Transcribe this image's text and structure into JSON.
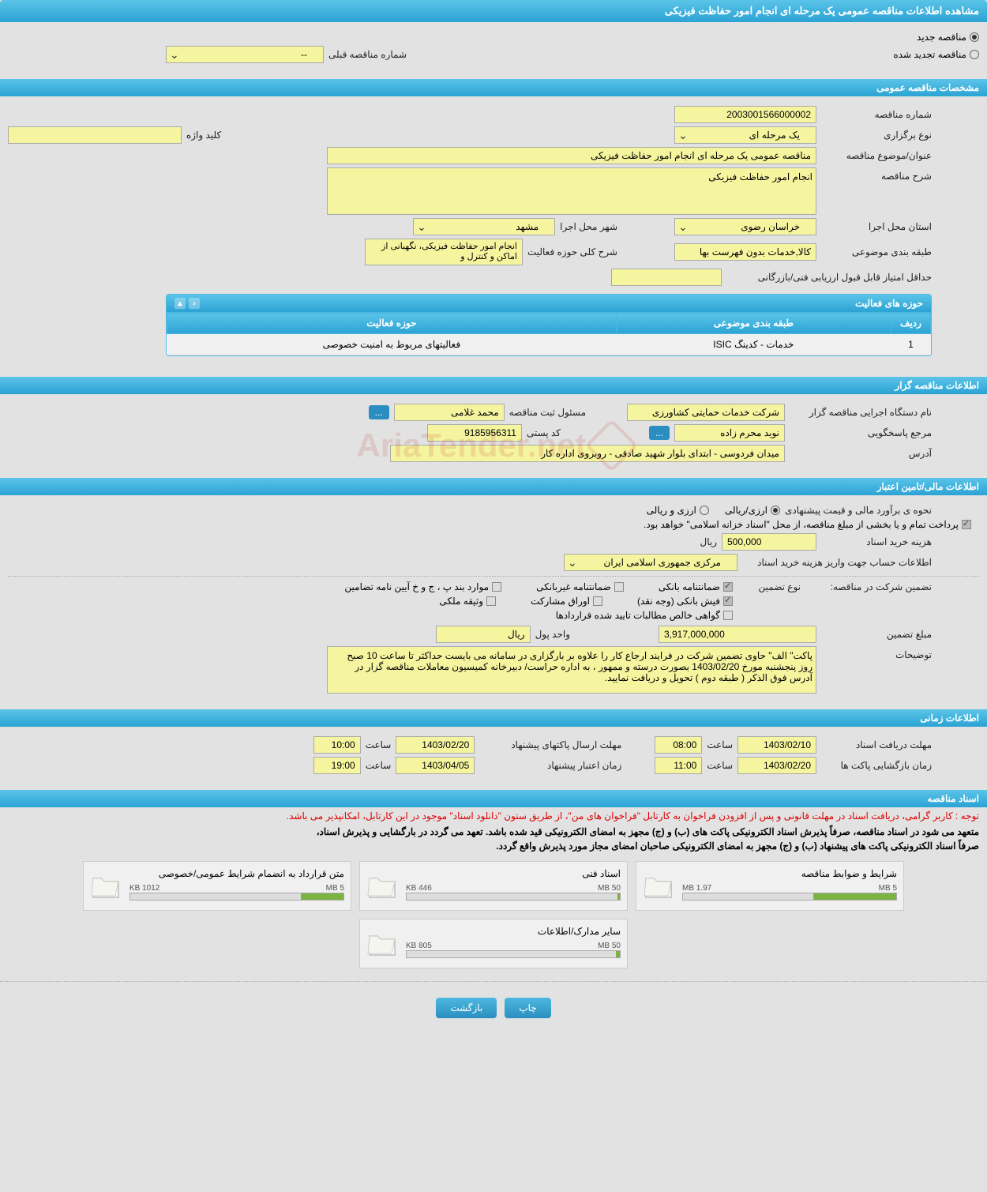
{
  "page_title": "مشاهده اطلاعات مناقصه عمومی یک مرحله ای انجام امور حفاظت فیزیکی",
  "tender_type": {
    "new": "مناقصه جدید",
    "renewed": "مناقصه تجدید شده",
    "prev_number_label": "شماره مناقصه قبلی",
    "prev_number_value": "--"
  },
  "general_spec": {
    "title": "مشخصات مناقصه عمومی",
    "tender_number_label": "شماره مناقصه",
    "tender_number": "2003001566000002",
    "holding_type_label": "نوع برگزاری",
    "holding_type": "یک مرحله ای",
    "keyword_label": "کلید واژه",
    "keyword": "",
    "subject_label": "عنوان/موضوع مناقصه",
    "subject": "مناقصه عمومی یک مرحله ای انجام امور حفاظت فیزیکی",
    "desc_label": "شرح مناقصه",
    "desc": "انجام امور حفاظت فیزیکی",
    "province_label": "استان محل اجرا",
    "province": "خراسان رضوی",
    "city_label": "شهر محل اجرا",
    "city": "مشهد",
    "category_label": "طبقه بندی موضوعی",
    "category": "کالا,خدمات بدون فهرست بها",
    "activity_desc_label": "شرح کلی حوزه فعالیت",
    "activity_desc": "انجام امور حفاظت فیزیکی، نگهبانی از اماکن و کنترل و",
    "min_score_label": "حداقل امتیاز قابل قبول ارزیابی فنی/بازرگانی",
    "min_score": ""
  },
  "activity": {
    "panel_title": "حوزه های فعالیت",
    "col_row": "ردیف",
    "col_category": "طبقه بندی موضوعی",
    "col_field": "حوزه فعالیت",
    "rows": [
      {
        "num": "1",
        "category": "خدمات - کدینگ ISIC",
        "field": "فعالیتهای مربوط به امنیت خصوصی"
      }
    ]
  },
  "organizer": {
    "title": "اطلاعات مناقصه گزار",
    "name_label": "نام دستگاه اجرایی مناقصه گزار",
    "name": "شرکت خدمات حمایتی کشاورزی",
    "registrar_label": "مسئول ثبت مناقصه",
    "registrar": "محمد غلامی",
    "contact_label": "مرجع پاسخگویی",
    "contact": "نوید محرم زاده",
    "postal_label": "کد پستی",
    "postal": "9185956311",
    "address_label": "آدرس",
    "address": "میدان فردوسی - ابتدای بلوار شهید صادقی - روبروی اداره کار"
  },
  "financial": {
    "title": "اطلاعات مالی/تامین اعتبار",
    "estimate_label": "نحوه ی برآورد مالی و قیمت پیشنهادی",
    "currency_rial": "ارزی/ریالی",
    "currency_foreign": "ارزی و ریالی",
    "payment_note": "پرداخت تمام و یا بخشی از مبلغ مناقصه، از محل \"اسناد خزانه اسلامی\" خواهد بود.",
    "cost_label": "هزینه خرید اسناد",
    "cost": "500,000",
    "cost_unit": "ریال",
    "account_label": "اطلاعات حساب جهت واریز هزینه خرید اسناد",
    "account": "مرکزی جمهوری اسلامی ایران",
    "guarantee_label": "تضمین شرکت در مناقصه:",
    "guarantee_type_label": "نوع تضمین",
    "g_bank": "ضمانتنامه بانکی",
    "g_nonbank": "ضمانتنامه غیربانکی",
    "g_clause": "موارد بند پ ، ج و خ آیین نامه تضامین",
    "g_cash": "فیش بانکی (وجه نقد)",
    "g_bonds": "اوراق مشارکت",
    "g_property": "وثیقه ملکی",
    "g_cert": "گواهی خالص مطالبات تایید شده قراردادها",
    "amount_label": "مبلغ تضمین",
    "amount": "3,917,000,000",
    "unit_label": "واحد پول",
    "unit": "ریال",
    "notes_label": "توضیحات",
    "notes": "پاکت\" الف\" حاوی تضمین شرکت در فرایند ارجاع کار را علاوه بر بارگزاری در سامانه می بایست حداکثر تا ساعت 10 صبح روز پنجشنبه مورخ 1403/02/20 بصورت درسته و ممهور ، به اداره حراست/  دبیرخانه کمیسیون معاملات مناقصه گزار در آدرس فوق الذکر ( طبقه دوم ) تحویل و دریافت  نمایید."
  },
  "timing": {
    "title": "اطلاعات زمانی",
    "receive_label": "مهلت دریافت اسناد",
    "receive_date": "1403/02/10",
    "receive_time_label": "ساعت",
    "receive_time": "08:00",
    "submit_label": "مهلت ارسال پاکتهای پیشنهاد",
    "submit_date": "1403/02/20",
    "submit_time": "10:00",
    "open_label": "زمان بازگشایی پاکت ها",
    "open_date": "1403/02/20",
    "open_time": "11:00",
    "validity_label": "زمان اعتبار پیشنهاد",
    "validity_date": "1403/04/05",
    "validity_time": "19:00"
  },
  "docs": {
    "title": "اسناد مناقصه",
    "note_red": "توجه : کاربر گرامی، دریافت اسناد در مهلت قانونی و پس از افزودن فراخوان به کارتابل \"فراخوان های من\"، از طریق ستون \"دانلود اسناد\" موجود در این کارتابل، امکانپذیر می باشد.",
    "note1": "متعهد می شود در اسناد مناقصه، صرفاً پذیرش اسناد الکترونیکی پاکت های (ب) و (ج) مجهز به امضای الکترونیکی قید شده باشد. تعهد می گردد در بارگشایی و پذیرش اسناد،",
    "note2": "صرفاً اسناد الکترونیکی پاکت های پیشنهاد (ب) و (ج) مجهز به امضای الکترونیکی صاحبان امضای مجاز مورد پذیرش واقع گردد.",
    "cards": [
      {
        "title": "شرایط و ضوابط مناقصه",
        "used": "1.97 MB",
        "total": "5 MB",
        "pct": 39
      },
      {
        "title": "اسناد فنی",
        "used": "446 KB",
        "total": "50 MB",
        "pct": 1
      },
      {
        "title": "متن قرارداد به انضمام شرایط عمومی/خصوصی",
        "used": "1012 KB",
        "total": "5 MB",
        "pct": 20
      },
      {
        "title": "سایر مدارک/اطلاعات",
        "used": "805 KB",
        "total": "50 MB",
        "pct": 2
      }
    ]
  },
  "buttons": {
    "print": "چاپ",
    "back": "بازگشت"
  },
  "watermark": "AriaTender.net"
}
